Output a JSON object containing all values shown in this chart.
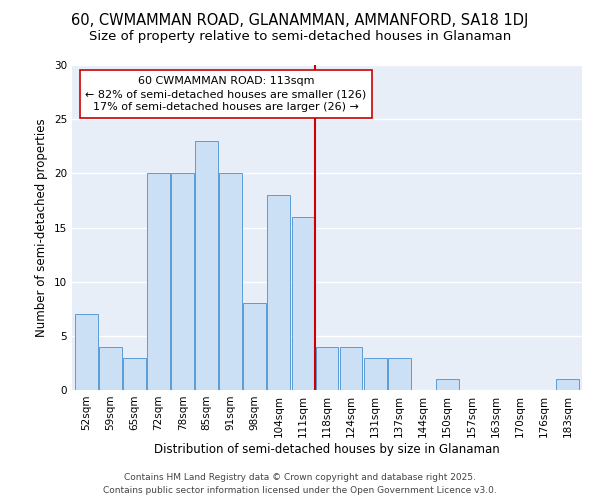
{
  "title1": "60, CWMAMMAN ROAD, GLANAMMAN, AMMANFORD, SA18 1DJ",
  "title2": "Size of property relative to semi-detached houses in Glanaman",
  "xlabel": "Distribution of semi-detached houses by size in Glanaman",
  "ylabel": "Number of semi-detached properties",
  "categories": [
    "52sqm",
    "59sqm",
    "65sqm",
    "72sqm",
    "78sqm",
    "85sqm",
    "91sqm",
    "98sqm",
    "104sqm",
    "111sqm",
    "118sqm",
    "124sqm",
    "131sqm",
    "137sqm",
    "144sqm",
    "150sqm",
    "157sqm",
    "163sqm",
    "170sqm",
    "176sqm",
    "183sqm"
  ],
  "values": [
    7,
    4,
    3,
    20,
    20,
    23,
    20,
    8,
    18,
    16,
    4,
    4,
    3,
    3,
    0,
    1,
    0,
    0,
    0,
    0,
    1
  ],
  "bar_color": "#cce0f5",
  "bar_edge_color": "#5b9bd5",
  "vline_label": "60 CWMAMMAN ROAD: 113sqm",
  "pct_smaller": 82,
  "count_smaller": 126,
  "pct_larger": 17,
  "count_larger": 26,
  "annotation_box_color": "#ffffff",
  "annotation_box_edge": "#cc0000",
  "vline_color": "#cc0000",
  "ylim": [
    0,
    30
  ],
  "yticks": [
    0,
    5,
    10,
    15,
    20,
    25,
    30
  ],
  "background_color": "#e8eef8",
  "grid_color": "#ffffff",
  "footer1": "Contains HM Land Registry data © Crown copyright and database right 2025.",
  "footer2": "Contains public sector information licensed under the Open Government Licence v3.0.",
  "title1_fontsize": 10.5,
  "title2_fontsize": 9.5,
  "axis_label_fontsize": 8.5,
  "tick_fontsize": 7.5,
  "annotation_fontsize": 8,
  "footer_fontsize": 6.5
}
